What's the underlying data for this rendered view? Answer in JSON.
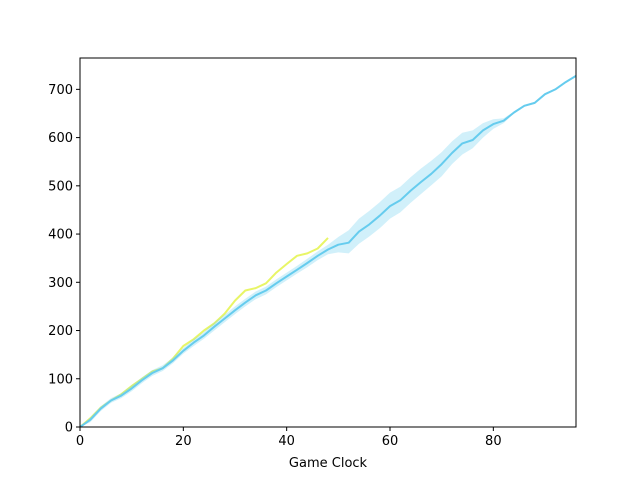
{
  "chart_data": {
    "type": "line",
    "title": "",
    "xlabel": "Game Clock",
    "ylabel": "",
    "xlim": [
      0,
      96
    ],
    "ylim": [
      0,
      765
    ],
    "xticks": [
      0,
      20,
      40,
      60,
      80
    ],
    "yticks": [
      0,
      100,
      200,
      300,
      400,
      500,
      600,
      700
    ],
    "grid": false,
    "legend": "none",
    "series": [
      {
        "color": "#e8f566",
        "band": false,
        "x": [
          0,
          2,
          4,
          6,
          8,
          10,
          12,
          14,
          16,
          18,
          20,
          22,
          24,
          26,
          28,
          30,
          32,
          34,
          36,
          38,
          40,
          42,
          44,
          46,
          48
        ],
        "y": [
          0,
          18,
          40,
          55,
          68,
          85,
          100,
          115,
          122,
          142,
          168,
          182,
          200,
          215,
          235,
          262,
          283,
          288,
          298,
          320,
          338,
          355,
          360,
          370,
          392
        ]
      },
      {
        "color": "#66ccee",
        "band": true,
        "x": [
          0,
          2,
          4,
          6,
          8,
          10,
          12,
          14,
          16,
          18,
          20,
          22,
          24,
          26,
          28,
          30,
          32,
          34,
          36,
          38,
          40,
          42,
          44,
          46,
          48,
          50,
          52,
          54,
          56,
          58,
          60,
          62,
          64,
          66,
          68,
          70,
          72,
          74,
          76,
          78,
          80,
          82,
          84,
          86,
          88,
          90,
          92,
          94,
          96
        ],
        "y": [
          0,
          15,
          38,
          55,
          65,
          80,
          97,
          112,
          122,
          138,
          158,
          175,
          190,
          208,
          225,
          242,
          258,
          273,
          283,
          298,
          312,
          326,
          340,
          355,
          368,
          378,
          382,
          405,
          420,
          438,
          458,
          470,
          490,
          508,
          525,
          545,
          568,
          588,
          595,
          615,
          628,
          635,
          652,
          666,
          672,
          690,
          700,
          715,
          728
        ],
        "lower": [
          0,
          10,
          33,
          50,
          60,
          74,
          91,
          106,
          116,
          132,
          152,
          168,
          183,
          200,
          217,
          234,
          250,
          265,
          275,
          290,
          304,
          318,
          331,
          346,
          358,
          362,
          360,
          380,
          395,
          412,
          432,
          445,
          465,
          483,
          501,
          520,
          545,
          565,
          578,
          600,
          618,
          630,
          650,
          664,
          670,
          688,
          698,
          713,
          726
        ],
        "upper": [
          0,
          20,
          43,
          60,
          70,
          86,
          103,
          118,
          128,
          144,
          164,
          182,
          197,
          216,
          233,
          250,
          266,
          281,
          291,
          306,
          320,
          334,
          349,
          364,
          378,
          394,
          408,
          432,
          448,
          466,
          486,
          498,
          518,
          536,
          552,
          570,
          592,
          610,
          615,
          630,
          638,
          640,
          654,
          668,
          674,
          692,
          702,
          717,
          730
        ]
      }
    ]
  }
}
